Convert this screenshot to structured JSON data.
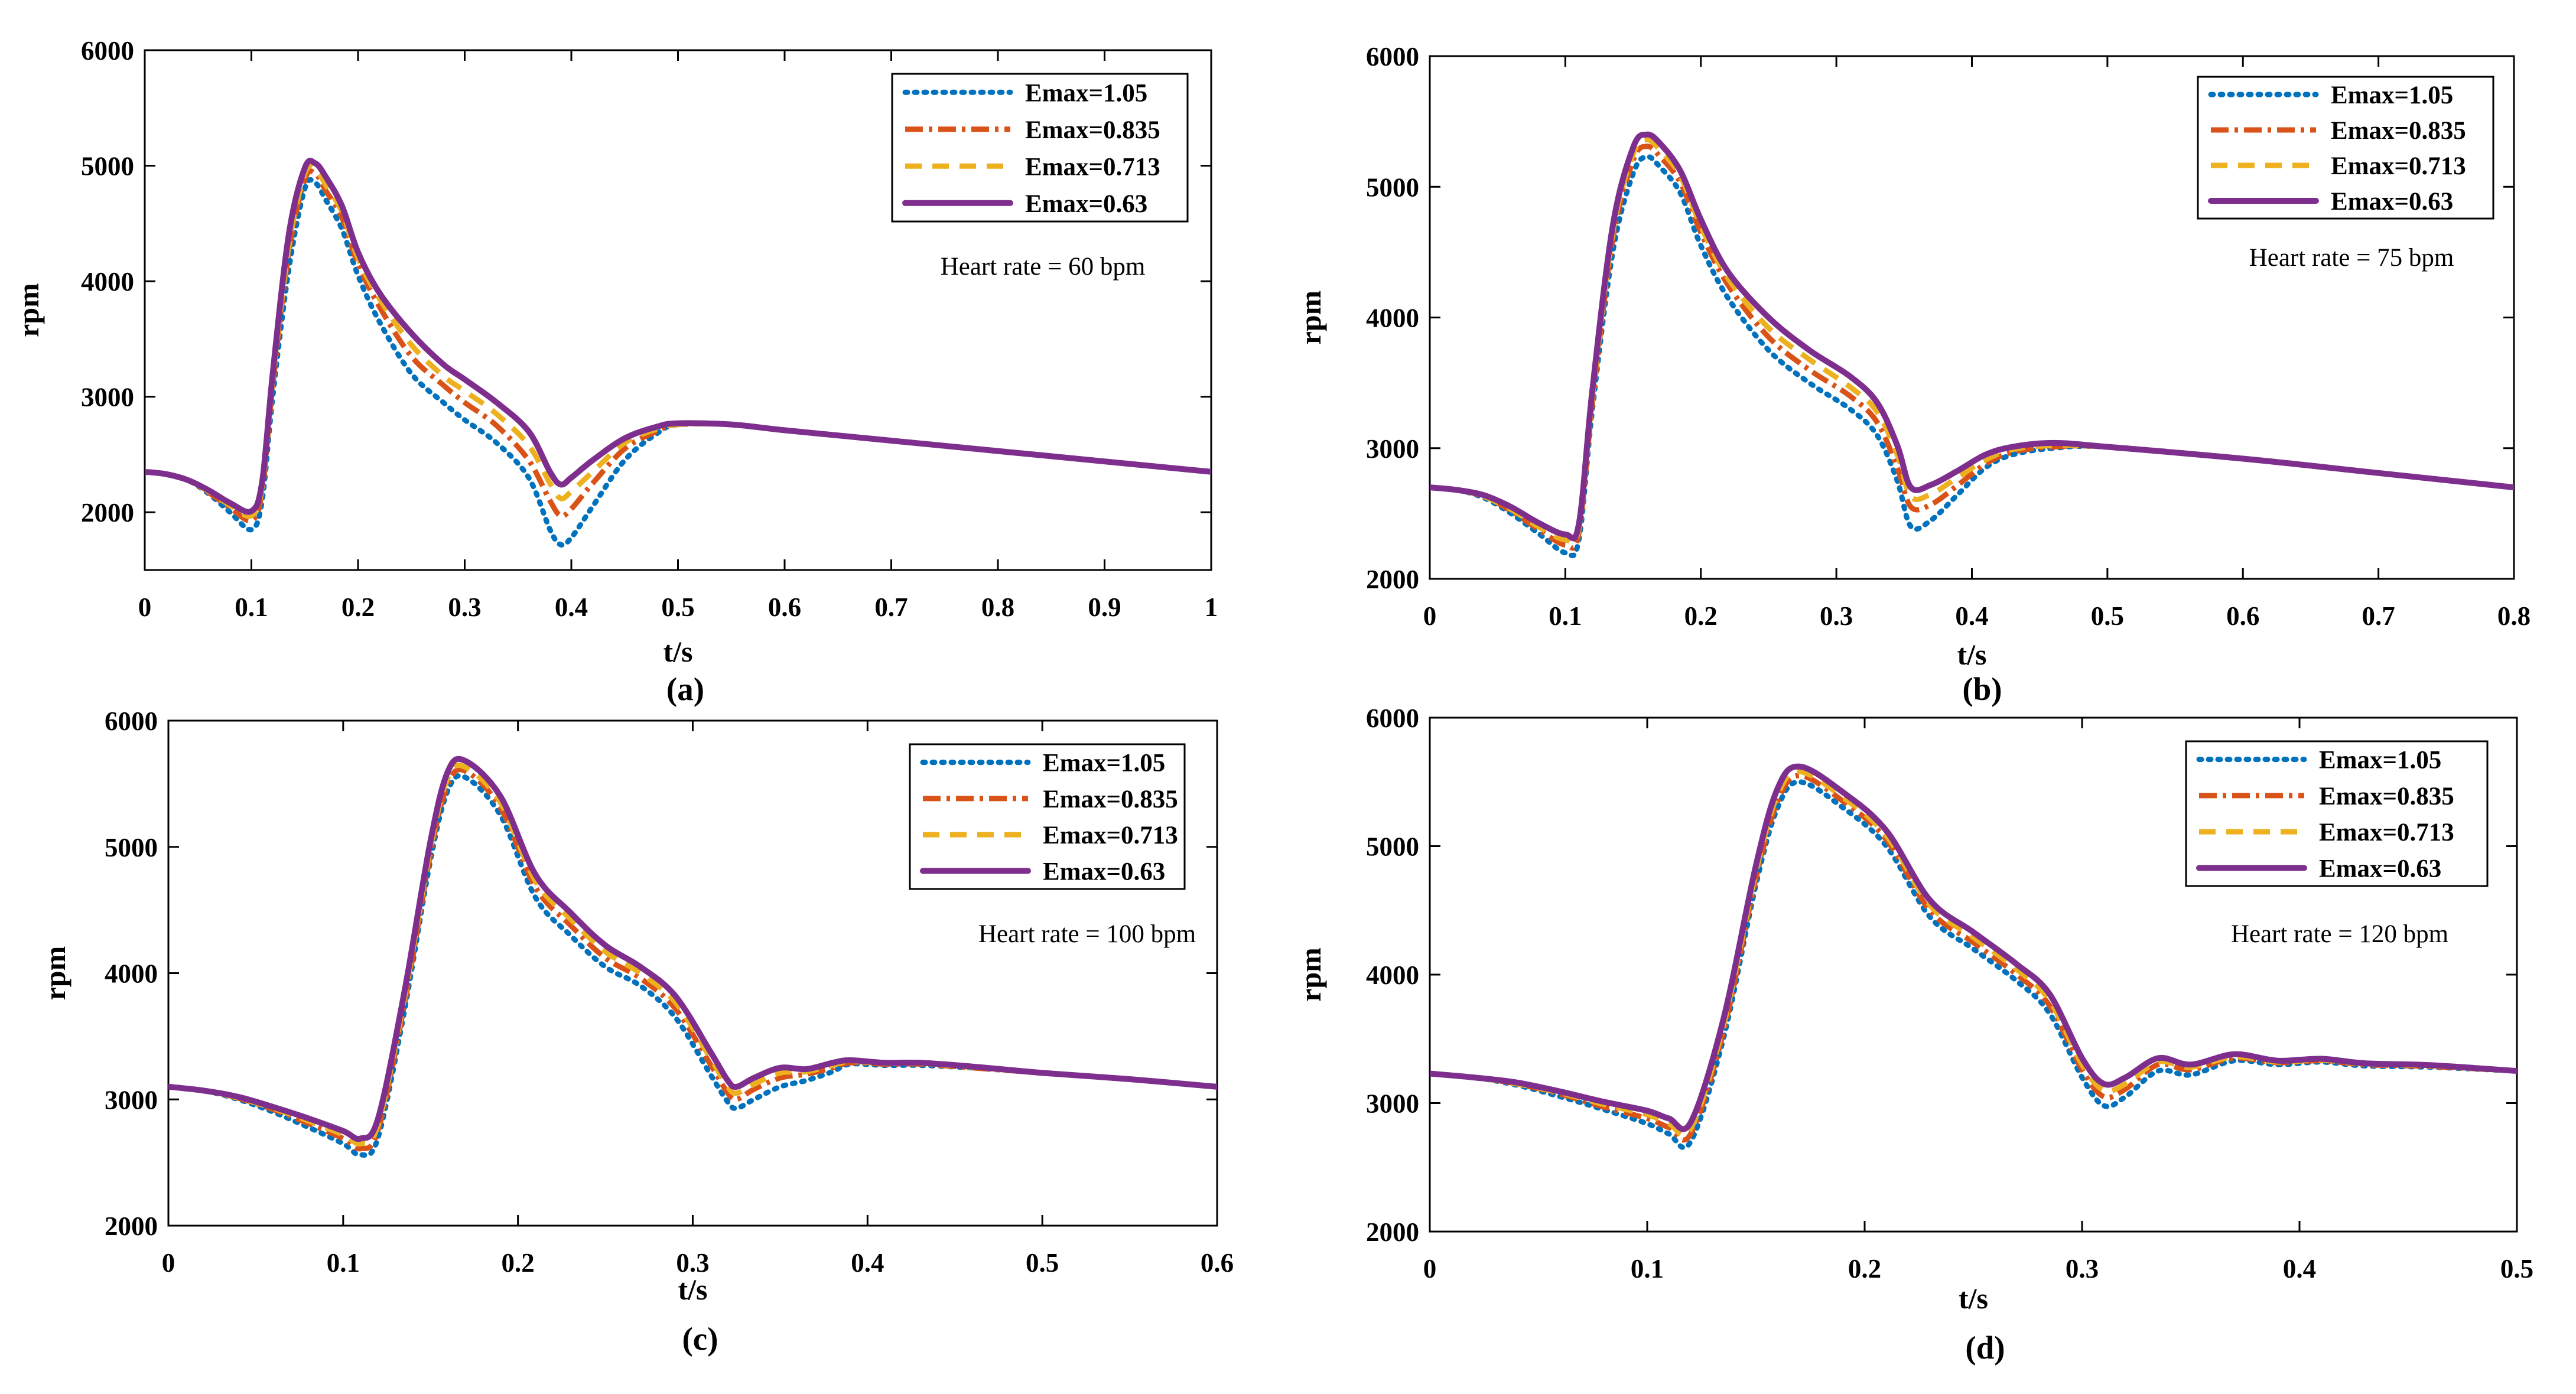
{
  "colors": {
    "emax_105": "#0072BD",
    "emax_0835": "#D95319",
    "emax_0713": "#EDB120",
    "emax_063": "#7E2F8E",
    "axes": "#000000",
    "background": "#ffffff"
  },
  "chart_data": [
    {
      "type": "line",
      "panel_label": "(a)",
      "annotation": "Heart rate = 60 bpm",
      "xlabel": "t/s",
      "ylabel": "rpm",
      "xlim": [
        0,
        1
      ],
      "ylim": [
        1500,
        6000
      ],
      "xticks": [
        0,
        0.1,
        0.2,
        0.3,
        0.4,
        0.5,
        0.6,
        0.7,
        0.8,
        0.9,
        1
      ],
      "xtick_labels": [
        "0",
        "0.1",
        "0.2",
        "0.3",
        "0.4",
        "0.5",
        "0.6",
        "0.7",
        "0.8",
        "0.9",
        "1"
      ],
      "yticks": [
        2000,
        3000,
        4000,
        5000,
        6000
      ],
      "ytick_labels": [
        "2000",
        "3000",
        "4000",
        "5000",
        "6000"
      ],
      "x": [
        0,
        0.02,
        0.04,
        0.06,
        0.08,
        0.1,
        0.11,
        0.12,
        0.135,
        0.15,
        0.16,
        0.17,
        0.185,
        0.2,
        0.22,
        0.25,
        0.28,
        0.3,
        0.33,
        0.36,
        0.38,
        0.39,
        0.4,
        0.42,
        0.45,
        0.48,
        0.5,
        0.55,
        0.6,
        0.7,
        0.8,
        0.9,
        1.0
      ],
      "series": [
        {
          "name": "Emax=1.05",
          "values": [
            2350,
            2330,
            2280,
            2160,
            2000,
            1850,
            2100,
            3000,
            4100,
            4800,
            4850,
            4700,
            4450,
            4050,
            3650,
            3200,
            2950,
            2800,
            2600,
            2300,
            1850,
            1720,
            1780,
            2050,
            2450,
            2680,
            2760,
            2760,
            2710,
            2620,
            2530,
            2440,
            2350
          ]
        },
        {
          "name": "Emax=0.835",
          "values": [
            2350,
            2330,
            2280,
            2170,
            2040,
            1930,
            2180,
            3100,
            4250,
            4880,
            4930,
            4780,
            4550,
            4150,
            3780,
            3350,
            3100,
            2950,
            2750,
            2450,
            2100,
            1970,
            2030,
            2250,
            2550,
            2700,
            2760,
            2760,
            2710,
            2620,
            2530,
            2440,
            2350
          ]
        },
        {
          "name": "Emax=0.713",
          "values": [
            2350,
            2330,
            2280,
            2180,
            2060,
            1970,
            2220,
            3150,
            4300,
            4930,
            4970,
            4830,
            4600,
            4200,
            3850,
            3450,
            3180,
            3050,
            2850,
            2580,
            2250,
            2120,
            2180,
            2350,
            2600,
            2720,
            2760,
            2760,
            2710,
            2620,
            2530,
            2440,
            2350
          ]
        },
        {
          "name": "Emax=0.63",
          "values": [
            2350,
            2330,
            2280,
            2190,
            2080,
            2010,
            2260,
            3200,
            4400,
            4980,
            5020,
            4900,
            4650,
            4250,
            3900,
            3550,
            3280,
            3150,
            2950,
            2700,
            2350,
            2240,
            2300,
            2450,
            2640,
            2740,
            2770,
            2760,
            2710,
            2620,
            2530,
            2440,
            2350
          ]
        }
      ]
    },
    {
      "type": "line",
      "panel_label": "(b)",
      "annotation": "Heart rate = 75 bpm",
      "xlabel": "t/s",
      "ylabel": "rpm",
      "xlim": [
        0,
        0.8
      ],
      "ylim": [
        2000,
        6000
      ],
      "xticks": [
        0,
        0.1,
        0.2,
        0.3,
        0.4,
        0.5,
        0.6,
        0.7,
        0.8
      ],
      "xtick_labels": [
        "0",
        "0.1",
        "0.2",
        "0.3",
        "0.4",
        "0.5",
        "0.6",
        "0.7",
        "0.8"
      ],
      "yticks": [
        2000,
        3000,
        4000,
        5000,
        6000
      ],
      "ytick_labels": [
        "2000",
        "3000",
        "4000",
        "5000",
        "6000"
      ],
      "x": [
        0,
        0.02,
        0.04,
        0.06,
        0.08,
        0.1,
        0.11,
        0.12,
        0.135,
        0.15,
        0.16,
        0.17,
        0.185,
        0.2,
        0.22,
        0.25,
        0.28,
        0.31,
        0.33,
        0.345,
        0.355,
        0.37,
        0.39,
        0.41,
        0.43,
        0.46,
        0.5,
        0.6,
        0.7,
        0.8
      ],
      "series": [
        {
          "name": "Emax=1.05",
          "values": [
            2700,
            2680,
            2620,
            2500,
            2350,
            2200,
            2300,
            3300,
            4500,
            5100,
            5230,
            5150,
            4950,
            4550,
            4150,
            3750,
            3500,
            3300,
            3100,
            2750,
            2400,
            2450,
            2650,
            2850,
            2950,
            3000,
            3010,
            2920,
            2810,
            2700
          ]
        },
        {
          "name": "Emax=0.835",
          "values": [
            2700,
            2680,
            2630,
            2520,
            2380,
            2260,
            2350,
            3350,
            4600,
            5200,
            5310,
            5230,
            5030,
            4650,
            4250,
            3850,
            3600,
            3400,
            3200,
            2850,
            2550,
            2570,
            2720,
            2880,
            2970,
            3010,
            3010,
            2920,
            2810,
            2700
          ]
        },
        {
          "name": "Emax=0.713",
          "values": [
            2700,
            2680,
            2630,
            2530,
            2400,
            2300,
            2390,
            3400,
            4650,
            5250,
            5360,
            5280,
            5080,
            4700,
            4300,
            3920,
            3680,
            3470,
            3280,
            2950,
            2630,
            2650,
            2780,
            2910,
            2990,
            3020,
            3010,
            2920,
            2810,
            2700
          ]
        },
        {
          "name": "Emax=0.63",
          "values": [
            2700,
            2680,
            2640,
            2550,
            2430,
            2340,
            2420,
            3450,
            4700,
            5300,
            5400,
            5330,
            5120,
            4750,
            4350,
            4000,
            3750,
            3550,
            3350,
            3020,
            2700,
            2720,
            2830,
            2950,
            3010,
            3040,
            3010,
            2920,
            2810,
            2700
          ]
        }
      ]
    },
    {
      "type": "line",
      "panel_label": "(c)",
      "annotation": "Heart rate = 100 bpm",
      "xlabel": "t/s",
      "ylabel": "rpm",
      "xlim": [
        0,
        0.6
      ],
      "ylim": [
        2000,
        6000
      ],
      "xticks": [
        0,
        0.1,
        0.2,
        0.3,
        0.4,
        0.5,
        0.6
      ],
      "xtick_labels": [
        "0",
        "0.1",
        "0.2",
        "0.3",
        "0.4",
        "0.5",
        "0.6"
      ],
      "yticks": [
        2000,
        3000,
        4000,
        5000,
        6000
      ],
      "ytick_labels": [
        "2000",
        "3000",
        "4000",
        "5000",
        "6000"
      ],
      "x": [
        0,
        0.02,
        0.04,
        0.06,
        0.08,
        0.1,
        0.11,
        0.12,
        0.135,
        0.15,
        0.16,
        0.17,
        0.19,
        0.21,
        0.23,
        0.25,
        0.27,
        0.29,
        0.31,
        0.32,
        0.325,
        0.335,
        0.35,
        0.365,
        0.38,
        0.39,
        0.41,
        0.43,
        0.46,
        0.5,
        0.55,
        0.6
      ],
      "series": [
        {
          "name": "Emax=1.05",
          "values": [
            3100,
            3070,
            3000,
            2900,
            2780,
            2650,
            2560,
            2700,
            3700,
            4900,
            5450,
            5550,
            5250,
            4600,
            4300,
            4050,
            3900,
            3650,
            3200,
            2980,
            2930,
            3000,
            3100,
            3150,
            3220,
            3280,
            3270,
            3270,
            3250,
            3210,
            3160,
            3100
          ]
        },
        {
          "name": "Emax=0.835",
          "values": [
            3100,
            3070,
            3010,
            2920,
            2810,
            2690,
            2610,
            2760,
            3750,
            4950,
            5500,
            5600,
            5310,
            4680,
            4380,
            4120,
            3960,
            3720,
            3280,
            3050,
            3000,
            3080,
            3170,
            3200,
            3250,
            3290,
            3280,
            3280,
            3250,
            3210,
            3160,
            3100
          ]
        },
        {
          "name": "Emax=0.713",
          "values": [
            3100,
            3070,
            3010,
            2930,
            2830,
            2720,
            2650,
            2800,
            3800,
            5000,
            5550,
            5630,
            5350,
            4730,
            4430,
            4170,
            4000,
            3770,
            3330,
            3100,
            3050,
            3120,
            3210,
            3220,
            3270,
            3300,
            3285,
            3285,
            3255,
            3210,
            3160,
            3100
          ]
        },
        {
          "name": "Emax=0.63",
          "values": [
            3100,
            3070,
            3020,
            2940,
            2850,
            2750,
            2690,
            2850,
            3850,
            5050,
            5600,
            5680,
            5400,
            4780,
            4480,
            4220,
            4050,
            3820,
            3380,
            3150,
            3100,
            3170,
            3250,
            3240,
            3290,
            3310,
            3290,
            3290,
            3260,
            3210,
            3160,
            3100
          ]
        }
      ]
    },
    {
      "type": "line",
      "panel_label": "(d)",
      "annotation": "Heart rate = 120 bpm",
      "xlabel": "t/s",
      "ylabel": "rpm",
      "xlim": [
        0,
        0.5
      ],
      "ylim": [
        2000,
        6000
      ],
      "xticks": [
        0,
        0.1,
        0.2,
        0.3,
        0.4,
        0.5
      ],
      "xtick_labels": [
        "0",
        "0.1",
        "0.2",
        "0.3",
        "0.4",
        "0.5"
      ],
      "yticks": [
        2000,
        3000,
        4000,
        5000,
        6000
      ],
      "ytick_labels": [
        "2000",
        "3000",
        "4000",
        "5000",
        "6000"
      ],
      "x": [
        0,
        0.02,
        0.04,
        0.06,
        0.08,
        0.1,
        0.11,
        0.12,
        0.135,
        0.15,
        0.16,
        0.17,
        0.19,
        0.21,
        0.23,
        0.25,
        0.27,
        0.285,
        0.3,
        0.31,
        0.32,
        0.335,
        0.35,
        0.37,
        0.39,
        0.41,
        0.43,
        0.46,
        0.5
      ],
      "series": [
        {
          "name": "Emax=1.05",
          "values": [
            3230,
            3200,
            3140,
            3050,
            2950,
            2840,
            2760,
            2700,
            3500,
            4700,
            5300,
            5500,
            5300,
            5000,
            4450,
            4200,
            3950,
            3700,
            3200,
            2980,
            3050,
            3250,
            3220,
            3330,
            3300,
            3320,
            3290,
            3280,
            3250
          ]
        },
        {
          "name": "Emax=0.835",
          "values": [
            3230,
            3200,
            3150,
            3070,
            2970,
            2880,
            2810,
            2760,
            3550,
            4750,
            5350,
            5550,
            5350,
            5050,
            4500,
            4250,
            4000,
            3760,
            3260,
            3050,
            3110,
            3300,
            3260,
            3350,
            3315,
            3330,
            3300,
            3285,
            3250
          ]
        },
        {
          "name": "Emax=0.713",
          "values": [
            3230,
            3200,
            3150,
            3080,
            2990,
            2910,
            2840,
            2800,
            3600,
            4800,
            5400,
            5580,
            5380,
            5080,
            4540,
            4290,
            4040,
            3800,
            3300,
            3100,
            3150,
            3320,
            3280,
            3360,
            3320,
            3335,
            3305,
            3290,
            3250
          ]
        },
        {
          "name": "Emax=0.63",
          "values": [
            3230,
            3200,
            3160,
            3090,
            3010,
            2940,
            2880,
            2850,
            3650,
            4850,
            5450,
            5620,
            5420,
            5120,
            4580,
            4330,
            4080,
            3850,
            3350,
            3150,
            3200,
            3350,
            3300,
            3380,
            3330,
            3345,
            3310,
            3295,
            3250
          ]
        }
      ]
    }
  ]
}
